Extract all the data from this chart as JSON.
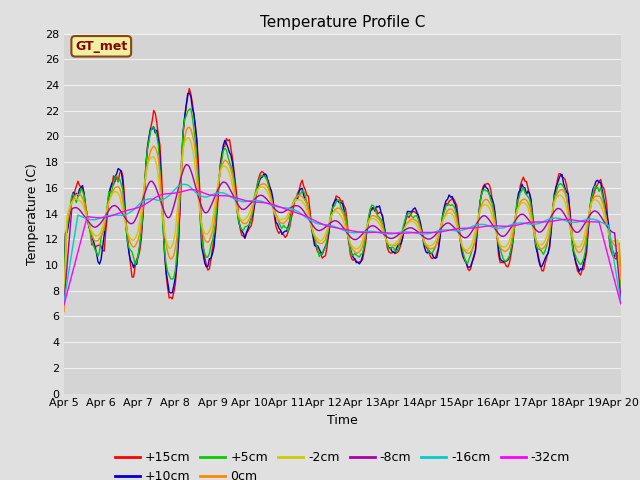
{
  "title": "Temperature Profile C",
  "xlabel": "Time",
  "ylabel": "Temperature (C)",
  "ylim": [
    0,
    28
  ],
  "yticks": [
    0,
    2,
    4,
    6,
    8,
    10,
    12,
    14,
    16,
    18,
    20,
    22,
    24,
    26,
    28
  ],
  "x_labels": [
    "Apr 5",
    "Apr 6",
    "Apr 7",
    "Apr 8",
    "Apr 9",
    "Apr 10",
    "Apr 11",
    "Apr 12",
    "Apr 13",
    "Apr 14",
    "Apr 15",
    "Apr 16",
    "Apr 17",
    "Apr 18",
    "Apr 19",
    "Apr 20"
  ],
  "series": [
    {
      "label": "+15cm",
      "color": "#ff0000"
    },
    {
      "label": "+10cm",
      "color": "#0000cc"
    },
    {
      "label": "+5cm",
      "color": "#00cc00"
    },
    {
      "label": "0cm",
      "color": "#ff8800"
    },
    {
      "label": "-2cm",
      "color": "#cccc00"
    },
    {
      "label": "-8cm",
      "color": "#aa00aa"
    },
    {
      "label": "-16cm",
      "color": "#00cccc"
    },
    {
      "label": "-32cm",
      "color": "#ff00ff"
    }
  ],
  "gt_met_label": "GT_met",
  "background_color": "#e0e0e0",
  "plot_bg_color": "#d4d4d4",
  "grid_color": "#f0f0f0",
  "title_fontsize": 11,
  "axis_label_fontsize": 9,
  "tick_fontsize": 8,
  "legend_fontsize": 9
}
